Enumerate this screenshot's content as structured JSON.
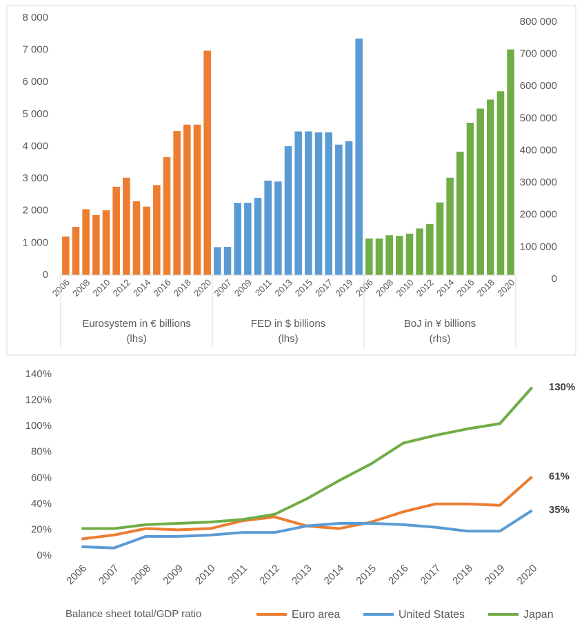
{
  "chart_data": [
    {
      "type": "bar",
      "ylim": [
        0,
        8000
      ],
      "yticks": [
        0,
        {
          "value": 1000,
          "label": "1 000"
        },
        {
          "value": 2000,
          "label": "2 000"
        },
        {
          "value": 3000,
          "label": "3 000"
        },
        {
          "value": 4000,
          "label": "4 000"
        },
        {
          "value": 5000,
          "label": "5 000"
        },
        {
          "value": 6000,
          "label": "6 000"
        },
        {
          "value": 7000,
          "label": "7 000"
        },
        {
          "value": 8000,
          "label": "8 000"
        }
      ],
      "y2lim": [
        0,
        800000
      ],
      "y2ticks": [
        0,
        {
          "value": 100000,
          "label": "100 000"
        },
        {
          "value": 200000,
          "label": "200 000"
        },
        {
          "value": 300000,
          "label": "300 000"
        },
        {
          "value": 400000,
          "label": "400 000"
        },
        {
          "value": 500000,
          "label": "500 000"
        },
        {
          "value": 600000,
          "label": "600 000"
        },
        {
          "value": 700000,
          "label": "700 000"
        },
        {
          "value": 800000,
          "label": "800 000"
        }
      ],
      "series": [
        {
          "name": [
            "Eurosystem in € billions",
            "(lhs)"
          ],
          "color": "#ed7d31",
          "axis": "y",
          "categories": [
            "2006",
            null,
            "2008",
            null,
            "2010",
            null,
            "2012",
            null,
            "2014",
            null,
            "2016",
            null,
            "2018",
            null,
            "2020"
          ],
          "values": [
            1200,
            1500,
            2050,
            1870,
            2020,
            2750,
            3030,
            2300,
            2130,
            2800,
            3670,
            4480,
            4680,
            4680,
            6980
          ]
        },
        {
          "name": [
            "FED in $ billions",
            "(lhs)"
          ],
          "color": "#5b9bd5",
          "axis": "y",
          "categories": [
            null,
            "2007",
            null,
            "2009",
            null,
            "2011",
            null,
            "2013",
            null,
            "2015",
            null,
            "2017",
            null,
            "2019",
            null
          ],
          "values": [
            870,
            880,
            2250,
            2250,
            2400,
            2940,
            2910,
            4010,
            4470,
            4470,
            4440,
            4440,
            4060,
            4170,
            7360
          ]
        },
        {
          "name": [
            "BoJ in ¥ billions",
            "(rhs)"
          ],
          "color": "#70ad47",
          "axis": "y2",
          "categories": [
            "2006",
            null,
            "2008",
            null,
            "2010",
            null,
            "2012",
            null,
            "2014",
            null,
            "2016",
            null,
            "2018",
            null,
            "2020"
          ],
          "values": [
            114000,
            114000,
            124000,
            122000,
            129000,
            145000,
            159000,
            226000,
            303000,
            384000,
            474000,
            518000,
            546000,
            572000,
            702000
          ]
        }
      ]
    },
    {
      "type": "line",
      "legend_title": "Balance sheet total/GDP ratio",
      "categories": [
        "2006",
        "2007",
        "2008",
        "2009",
        "2010",
        "2011",
        "2012",
        "2013",
        "2014",
        "2015",
        "2016",
        "2017",
        "2018",
        "2019",
        "2020"
      ],
      "ylim": [
        0,
        140
      ],
      "yticks": [
        {
          "value": 0,
          "label": "0%"
        },
        {
          "value": 20,
          "label": "20%"
        },
        {
          "value": 40,
          "label": "40%"
        },
        {
          "value": 60,
          "label": "60%"
        },
        {
          "value": 80,
          "label": "80%"
        },
        {
          "value": 100,
          "label": "100%"
        },
        {
          "value": 120,
          "label": "120%"
        },
        {
          "value": 140,
          "label": "140%"
        }
      ],
      "series": [
        {
          "name": "Euro area",
          "color": "#ed7d31",
          "values": [
            13,
            16,
            21,
            20,
            21,
            27,
            30,
            23,
            21,
            26,
            34,
            40,
            40,
            39,
            61
          ],
          "end_label": "61%"
        },
        {
          "name": "United States",
          "color": "#5b9bd5",
          "values": [
            7,
            6,
            15,
            15,
            16,
            18,
            18,
            23,
            25,
            25,
            24,
            22,
            19,
            19,
            35
          ],
          "end_label": "35%"
        },
        {
          "name": "Japan",
          "color": "#70ad47",
          "values": [
            21,
            21,
            24,
            25,
            26,
            28,
            32,
            44,
            58,
            71,
            87,
            93,
            98,
            102,
            130
          ],
          "end_label": "130%"
        }
      ]
    }
  ]
}
